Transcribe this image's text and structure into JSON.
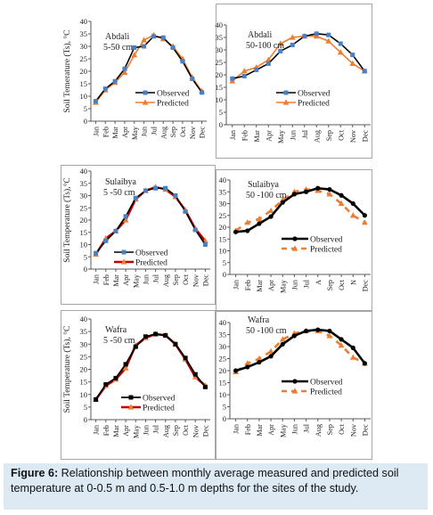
{
  "months": [
    "Jan",
    "Feb",
    "Mar",
    "Apr",
    "May",
    "Jun",
    "Jul",
    "Aug",
    "Sep",
    "Oct",
    "Nov",
    "Dec"
  ],
  "months_short": [
    "Jan",
    "Feb",
    "Mar",
    "Apr",
    "May",
    "Jun",
    "Jul",
    "A",
    "Sep",
    "Oct",
    "N",
    "Dec"
  ],
  "colors": {
    "observed": "#000000",
    "predicted": "#ed7d31",
    "predicted_dark": "#c00000",
    "axis": "#595959",
    "marker_blue": "#4a7fc1"
  },
  "caption": {
    "label": "Figure 6:",
    "text": " Relationship between monthly average measured and predicted soil temperature at 0-0.5 m and 0.5-1.0 m depths for the sites of the study."
  },
  "chart_data": [
    {
      "type": "line",
      "site": "Abdali",
      "depth": "5-50 cm",
      "ylabel": "Soil Temerature (Ts), °C",
      "ylim": [
        0,
        40
      ],
      "yticks": [
        0,
        5,
        10,
        15,
        20,
        25,
        30,
        35,
        40
      ],
      "legend": "right",
      "series": [
        {
          "name": "Observed",
          "values": [
            8.0,
            13.0,
            16.0,
            21.0,
            29.5,
            30.0,
            34.0,
            33.5,
            29.5,
            24.0,
            17.0,
            11.5
          ]
        },
        {
          "name": "Predicted",
          "values": [
            7.5,
            12.5,
            15.5,
            19.5,
            26.5,
            32.5,
            34.5,
            33.0,
            30.0,
            25.0,
            17.5,
            12.0
          ]
        }
      ]
    },
    {
      "type": "line",
      "site": "Abdali",
      "depth": "50-100 cm",
      "ylabel": "",
      "ylim": [
        0,
        40
      ],
      "yticks": [
        0,
        5,
        10,
        15,
        20,
        25,
        30,
        35,
        40
      ],
      "legend": "right",
      "series": [
        {
          "name": "Observed",
          "values": [
            18.5,
            19.5,
            22.0,
            24.5,
            29.5,
            32.0,
            35.5,
            36.5,
            36.0,
            32.5,
            28.0,
            21.5
          ]
        },
        {
          "name": "Predicted",
          "values": [
            17.5,
            21.5,
            23.0,
            26.0,
            32.5,
            35.0,
            35.5,
            35.5,
            33.5,
            29.0,
            24.5,
            21.5
          ]
        }
      ]
    },
    {
      "type": "line",
      "site": "Sulaibya",
      "depth": "5 -50 cm",
      "ylabel": "Soil Temperature (Ts),°C",
      "ylim": [
        0,
        40
      ],
      "yticks": [
        0,
        5,
        10,
        15,
        20,
        25,
        30,
        35,
        40
      ],
      "legend": "right",
      "series": [
        {
          "name": "Observed",
          "values": [
            6.5,
            11.5,
            15.5,
            21.5,
            29.0,
            32.0,
            33.0,
            33.0,
            30.0,
            23.5,
            16.0,
            10.0
          ]
        },
        {
          "name": "Predicted",
          "values": [
            6.0,
            12.5,
            15.5,
            20.0,
            28.5,
            32.0,
            33.5,
            32.5,
            29.5,
            24.0,
            16.5,
            11.5
          ]
        }
      ]
    },
    {
      "type": "line",
      "site": "Sulaibya",
      "depth": "50 -100 cm",
      "ylabel": "",
      "ylim": [
        0,
        40
      ],
      "yticks": [
        0,
        5,
        10,
        15,
        20,
        25,
        30,
        35,
        40
      ],
      "legend": "right",
      "series": [
        {
          "name": "Observed",
          "values": [
            18.0,
            18.5,
            21.5,
            24.5,
            30.5,
            34.0,
            35.0,
            36.5,
            36.0,
            33.5,
            30.0,
            25.0
          ]
        },
        {
          "name": "Predicted",
          "values": [
            18.5,
            22.0,
            23.5,
            27.0,
            31.5,
            35.0,
            36.0,
            35.5,
            34.0,
            30.0,
            25.0,
            22.0
          ]
        }
      ]
    },
    {
      "type": "line",
      "site": "Wafra",
      "depth": "5 -50 cm",
      "ylabel": "Soil Temperature (Ts), °C",
      "ylim": [
        0,
        40
      ],
      "yticks": [
        0,
        5,
        10,
        15,
        20,
        25,
        30,
        35,
        40
      ],
      "legend": "right",
      "series": [
        {
          "name": "Observed",
          "values": [
            8.0,
            14.0,
            16.5,
            22.0,
            29.0,
            33.0,
            34.0,
            33.5,
            30.0,
            24.5,
            18.0,
            13.0
          ]
        },
        {
          "name": "Predicted",
          "values": [
            8.0,
            13.5,
            16.0,
            20.5,
            29.5,
            32.5,
            34.0,
            33.5,
            30.0,
            24.0,
            17.0,
            13.5
          ]
        }
      ]
    },
    {
      "type": "line",
      "site": "Wafra",
      "depth": "50 -100 cm",
      "ylabel": "",
      "ylim": [
        0,
        40
      ],
      "yticks": [
        0,
        5,
        10,
        15,
        20,
        25,
        30,
        35,
        40
      ],
      "legend": "right",
      "series": [
        {
          "name": "Observed",
          "values": [
            20.0,
            21.5,
            23.5,
            26.0,
            31.0,
            34.5,
            36.5,
            37.0,
            36.5,
            33.0,
            29.5,
            23.0
          ]
        },
        {
          "name": "Predicted",
          "values": [
            19.5,
            23.0,
            25.0,
            28.0,
            33.0,
            35.5,
            36.5,
            36.5,
            34.5,
            30.5,
            25.5,
            23.0
          ]
        }
      ]
    }
  ]
}
